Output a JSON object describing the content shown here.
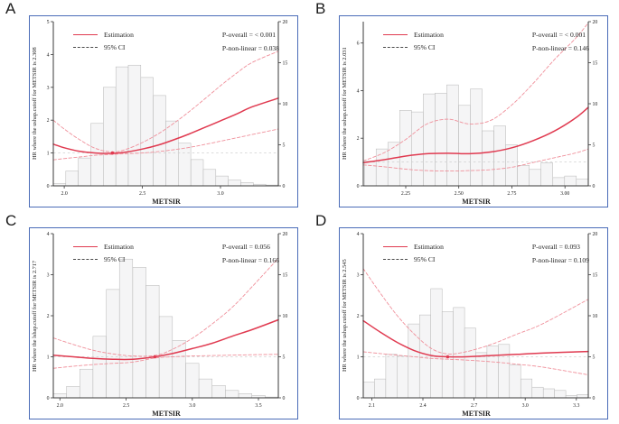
{
  "figure": {
    "panel_letters": [
      "A",
      "B",
      "C",
      "D"
    ],
    "colors": {
      "estimation": "#e03a50",
      "ci": "#f0909b",
      "legend_ci": "#4a4a4a",
      "panel_border": "#4a6cb8",
      "axis": "#3a3a3a",
      "reference": "#cfcfcf",
      "hist_fill": "#f5f5f6",
      "hist_stroke": "#b5b5b5",
      "text": "#222222"
    }
  },
  "chart_data": [
    {
      "type": "line",
      "panel": "A",
      "xlabel": "METSIR",
      "ylabel_left": "HR where the ushap.cutoff for METSIR is 2.308",
      "legend": [
        "Estimation",
        "95% CI"
      ],
      "annotations": [
        "P-overall = < 0.001",
        "P-non-linear = 0.038"
      ],
      "xlim": [
        1.93,
        3.37
      ],
      "ylim_left": [
        0,
        5
      ],
      "ylim_right": [
        0,
        20
      ],
      "x_tick_values": [
        2.0,
        2.5,
        3.0
      ],
      "x_tick_labels": [
        "2.0",
        "2.5",
        "3.0"
      ],
      "y_ticks_left": [
        0,
        1,
        2,
        3,
        4,
        5
      ],
      "y_ticks_right": [
        0,
        5,
        10,
        15,
        20
      ],
      "reference_line_y": 1,
      "cutoff_point": {
        "x": 2.308,
        "y": 1.0
      },
      "series": [
        {
          "name": "Estimation",
          "style": "solid",
          "points": [
            [
              1.93,
              1.27
            ],
            [
              2.0,
              1.16
            ],
            [
              2.1,
              1.05
            ],
            [
              2.2,
              1.0
            ],
            [
              2.31,
              0.99
            ],
            [
              2.4,
              1.03
            ],
            [
              2.5,
              1.12
            ],
            [
              2.6,
              1.24
            ],
            [
              2.7,
              1.4
            ],
            [
              2.8,
              1.58
            ],
            [
              2.9,
              1.78
            ],
            [
              3.0,
              1.98
            ],
            [
              3.1,
              2.18
            ],
            [
              3.2,
              2.4
            ],
            [
              3.37,
              2.67
            ]
          ]
        },
        {
          "name": "95% CI upper",
          "style": "dashed",
          "points": [
            [
              1.93,
              2.0
            ],
            [
              2.0,
              1.73
            ],
            [
              2.1,
              1.4
            ],
            [
              2.2,
              1.14
            ],
            [
              2.31,
              1.03
            ],
            [
              2.4,
              1.12
            ],
            [
              2.5,
              1.32
            ],
            [
              2.6,
              1.58
            ],
            [
              2.7,
              1.9
            ],
            [
              2.8,
              2.26
            ],
            [
              2.9,
              2.65
            ],
            [
              3.0,
              3.05
            ],
            [
              3.1,
              3.42
            ],
            [
              3.2,
              3.75
            ],
            [
              3.37,
              4.1
            ]
          ]
        },
        {
          "name": "95% CI lower",
          "style": "dashed",
          "points": [
            [
              1.93,
              0.79
            ],
            [
              2.0,
              0.83
            ],
            [
              2.1,
              0.88
            ],
            [
              2.2,
              0.93
            ],
            [
              2.31,
              0.96
            ],
            [
              2.4,
              0.98
            ],
            [
              2.5,
              1.0
            ],
            [
              2.6,
              1.04
            ],
            [
              2.7,
              1.1
            ],
            [
              2.8,
              1.17
            ],
            [
              2.9,
              1.26
            ],
            [
              3.0,
              1.36
            ],
            [
              3.1,
              1.46
            ],
            [
              3.2,
              1.56
            ],
            [
              3.37,
              1.73
            ]
          ]
        }
      ],
      "histogram": {
        "axis": "right",
        "bin_start": 1.93,
        "bin_width": 0.08,
        "heights_percent": [
          0.3,
          1.8,
          3.4,
          7.6,
          12.0,
          14.5,
          14.7,
          13.2,
          11.0,
          7.9,
          5.2,
          3.2,
          2.0,
          1.2,
          0.7,
          0.4,
          0.2,
          0.1
        ]
      }
    },
    {
      "type": "line",
      "panel": "B",
      "xlabel": "METSIR",
      "ylabel_left": "HR where the ushap.cutoff for METSIR is 2.031",
      "legend": [
        "Estimation",
        "95% CI"
      ],
      "annotations": [
        "P-overall = < 0.001",
        "P-non-linear = 0.146"
      ],
      "xlim": [
        2.05,
        3.11
      ],
      "ylim_left": [
        0,
        6.9
      ],
      "ylim_right": [
        0,
        20
      ],
      "x_tick_values": [
        2.25,
        2.5,
        2.75,
        3.0
      ],
      "x_tick_labels": [
        "2.25",
        "2.50",
        "2.75",
        "3.00"
      ],
      "y_ticks_left": [
        0,
        2,
        4,
        6
      ],
      "y_ticks_right": [
        0,
        5,
        10,
        15,
        20
      ],
      "reference_line_y": 1,
      "cutoff_point": null,
      "series": [
        {
          "name": "Estimation",
          "style": "solid",
          "points": [
            [
              2.05,
              0.97
            ],
            [
              2.15,
              1.1
            ],
            [
              2.25,
              1.25
            ],
            [
              2.35,
              1.35
            ],
            [
              2.45,
              1.37
            ],
            [
              2.55,
              1.35
            ],
            [
              2.65,
              1.42
            ],
            [
              2.75,
              1.6
            ],
            [
              2.85,
              1.9
            ],
            [
              2.95,
              2.3
            ],
            [
              3.05,
              2.85
            ],
            [
              3.11,
              3.3
            ]
          ]
        },
        {
          "name": "95% CI upper",
          "style": "dashed",
          "points": [
            [
              2.05,
              1.05
            ],
            [
              2.15,
              1.4
            ],
            [
              2.25,
              1.95
            ],
            [
              2.35,
              2.6
            ],
            [
              2.45,
              2.8
            ],
            [
              2.55,
              2.6
            ],
            [
              2.65,
              2.75
            ],
            [
              2.75,
              3.4
            ],
            [
              2.85,
              4.3
            ],
            [
              2.95,
              5.3
            ],
            [
              3.05,
              6.2
            ],
            [
              3.11,
              6.85
            ]
          ]
        },
        {
          "name": "95% CI lower",
          "style": "dashed",
          "points": [
            [
              2.05,
              0.88
            ],
            [
              2.15,
              0.8
            ],
            [
              2.25,
              0.7
            ],
            [
              2.35,
              0.64
            ],
            [
              2.45,
              0.62
            ],
            [
              2.55,
              0.64
            ],
            [
              2.65,
              0.68
            ],
            [
              2.75,
              0.78
            ],
            [
              2.85,
              0.98
            ],
            [
              2.95,
              1.18
            ],
            [
              3.05,
              1.38
            ],
            [
              3.11,
              1.55
            ]
          ]
        }
      ],
      "histogram": {
        "axis": "right",
        "bin_start": 2.055,
        "bin_width": 0.0555,
        "heights_percent": [
          3.0,
          4.5,
          5.3,
          9.2,
          9.0,
          11.2,
          11.3,
          12.3,
          9.8,
          11.8,
          6.7,
          7.3,
          5.0,
          2.5,
          2.0,
          2.8,
          1.0,
          1.2,
          0.8
        ]
      }
    },
    {
      "type": "line",
      "panel": "C",
      "xlabel": "METSIR",
      "ylabel_left": "HR where the lshap.cutoff for METSIR is 2.717",
      "legend": [
        "Estimation",
        "95% CI"
      ],
      "annotations": [
        "P-overall = 0.056",
        "P-non-linear = 0.166"
      ],
      "xlim": [
        1.95,
        3.65
      ],
      "ylim_left": [
        0,
        4
      ],
      "ylim_right": [
        0,
        20
      ],
      "x_tick_values": [
        2.0,
        2.5,
        3.0,
        3.5
      ],
      "x_tick_labels": [
        "2.0",
        "2.5",
        "3.0",
        "3.5"
      ],
      "y_ticks_left": [
        0,
        1,
        2,
        3,
        4
      ],
      "y_ticks_right": [
        0,
        5,
        10,
        15,
        20
      ],
      "reference_line_y": 1,
      "cutoff_point": {
        "x": 2.717,
        "y": 1.0
      },
      "series": [
        {
          "name": "Estimation",
          "style": "solid",
          "points": [
            [
              1.95,
              1.04
            ],
            [
              2.1,
              1.0
            ],
            [
              2.25,
              0.96
            ],
            [
              2.4,
              0.94
            ],
            [
              2.55,
              0.94
            ],
            [
              2.717,
              1.0
            ],
            [
              2.85,
              1.08
            ],
            [
              3.0,
              1.2
            ],
            [
              3.15,
              1.33
            ],
            [
              3.3,
              1.5
            ],
            [
              3.45,
              1.66
            ],
            [
              3.65,
              1.9
            ]
          ]
        },
        {
          "name": "95% CI upper",
          "style": "dashed",
          "points": [
            [
              1.95,
              1.46
            ],
            [
              2.1,
              1.3
            ],
            [
              2.25,
              1.16
            ],
            [
              2.4,
              1.07
            ],
            [
              2.55,
              1.02
            ],
            [
              2.717,
              1.03
            ],
            [
              2.85,
              1.18
            ],
            [
              3.0,
              1.45
            ],
            [
              3.15,
              1.8
            ],
            [
              3.3,
              2.2
            ],
            [
              3.45,
              2.7
            ],
            [
              3.65,
              3.4
            ]
          ]
        },
        {
          "name": "95% CI lower",
          "style": "dashed",
          "points": [
            [
              1.95,
              0.72
            ],
            [
              2.1,
              0.77
            ],
            [
              2.25,
              0.81
            ],
            [
              2.4,
              0.84
            ],
            [
              2.55,
              0.87
            ],
            [
              2.717,
              0.97
            ],
            [
              2.85,
              1.0
            ],
            [
              3.0,
              1.02
            ],
            [
              3.15,
              1.03
            ],
            [
              3.3,
              1.04
            ],
            [
              3.45,
              1.05
            ],
            [
              3.65,
              1.06
            ]
          ]
        }
      ],
      "histogram": {
        "axis": "right",
        "bin_start": 1.95,
        "bin_width": 0.1,
        "heights_percent": [
          0.5,
          1.4,
          3.5,
          7.5,
          13.2,
          16.9,
          15.9,
          13.7,
          9.9,
          7.0,
          4.2,
          2.3,
          1.5,
          0.9,
          0.5,
          0.3,
          0.1
        ]
      }
    },
    {
      "type": "line",
      "panel": "D",
      "xlabel": "METSIR",
      "ylabel_left": "HR where the ushap.cutoff for METSIR is 2.545",
      "legend": [
        "Estimation",
        "95% CI"
      ],
      "annotations": [
        "P-overall = 0.093",
        "P-non-linear = 0.109"
      ],
      "xlim": [
        2.05,
        3.37
      ],
      "ylim_left": [
        0,
        4
      ],
      "ylim_right": [
        0,
        20
      ],
      "x_tick_values": [
        2.1,
        2.4,
        2.7,
        3.0,
        3.3
      ],
      "x_tick_labels": [
        "2.1",
        "2.4",
        "2.7",
        "3.0",
        "3.3"
      ],
      "y_ticks_left": [
        0,
        1,
        2,
        3,
        4
      ],
      "y_ticks_right": [
        0,
        5,
        10,
        15,
        20
      ],
      "reference_line_y": 1,
      "cutoff_point": {
        "x": 2.545,
        "y": 1.0
      },
      "series": [
        {
          "name": "Estimation",
          "style": "solid",
          "points": [
            [
              2.05,
              1.88
            ],
            [
              2.15,
              1.6
            ],
            [
              2.25,
              1.35
            ],
            [
              2.35,
              1.15
            ],
            [
              2.45,
              1.03
            ],
            [
              2.545,
              1.0
            ],
            [
              2.65,
              1.0
            ],
            [
              2.8,
              1.03
            ],
            [
              2.95,
              1.06
            ],
            [
              3.1,
              1.09
            ],
            [
              3.37,
              1.13
            ]
          ]
        },
        {
          "name": "95% CI upper",
          "style": "dashed",
          "points": [
            [
              2.05,
              3.15
            ],
            [
              2.15,
              2.55
            ],
            [
              2.25,
              2.0
            ],
            [
              2.35,
              1.55
            ],
            [
              2.45,
              1.2
            ],
            [
              2.545,
              1.07
            ],
            [
              2.65,
              1.12
            ],
            [
              2.8,
              1.3
            ],
            [
              2.95,
              1.55
            ],
            [
              3.1,
              1.8
            ],
            [
              3.37,
              2.4
            ]
          ]
        },
        {
          "name": "95% CI lower",
          "style": "dashed",
          "points": [
            [
              2.05,
              1.12
            ],
            [
              2.15,
              1.08
            ],
            [
              2.25,
              1.04
            ],
            [
              2.35,
              1.0
            ],
            [
              2.45,
              0.96
            ],
            [
              2.545,
              0.94
            ],
            [
              2.65,
              0.92
            ],
            [
              2.8,
              0.88
            ],
            [
              2.95,
              0.82
            ],
            [
              3.1,
              0.75
            ],
            [
              3.37,
              0.56
            ]
          ]
        }
      ],
      "histogram": {
        "axis": "right",
        "bin_start": 2.05,
        "bin_width": 0.066,
        "heights_percent": [
          1.9,
          2.3,
          5.3,
          5.1,
          9.0,
          10.1,
          13.3,
          10.5,
          11.0,
          8.5,
          5.5,
          6.3,
          6.5,
          4.0,
          2.3,
          1.3,
          1.1,
          0.9,
          0.3,
          0.4
        ]
      }
    }
  ]
}
